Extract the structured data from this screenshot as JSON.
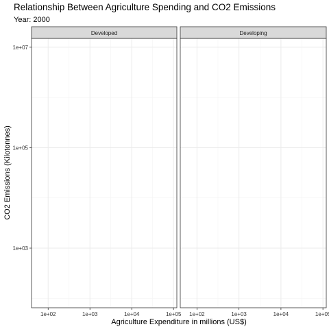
{
  "chart_data": {
    "type": "scatter",
    "title": "Relationship Between Agriculture Spending and CO2 Emissions",
    "subtitle": "Year: 2000",
    "xlabel": "Agriculture Expenditure in millions (US$)",
    "ylabel": "CO2 Emissions (Kilotonnes)",
    "x_scale": "log10",
    "y_scale": "log10",
    "xlim": [
      40,
      120000
    ],
    "ylim": [
      65,
      15000000
    ],
    "x_ticks": [
      100,
      1000,
      10000,
      100000
    ],
    "x_tick_labels": [
      "1e+02",
      "1e+03",
      "1e+04",
      "1e+05"
    ],
    "y_ticks": [
      1000,
      100000,
      10000000
    ],
    "y_tick_labels": [
      "1e+03",
      "1e+05",
      "1e+07"
    ],
    "grid": true,
    "facets": [
      {
        "label": "Developed",
        "points": []
      },
      {
        "label": "Developing",
        "points": []
      }
    ]
  }
}
